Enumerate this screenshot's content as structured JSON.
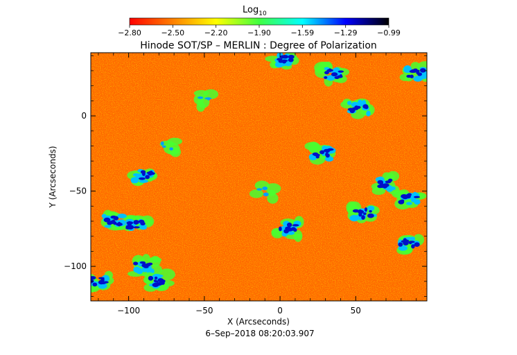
{
  "chart_data": {
    "type": "heatmap",
    "title": "Hinode SOT/SP – MERLIN : Degree of Polarization",
    "colorbar": {
      "label_main": "Log",
      "label_sub": "10",
      "ticks": [
        "−2.80",
        "−2.50",
        "−2.20",
        "−1.90",
        "−1.59",
        "−1.29",
        "−0.99"
      ],
      "range": [
        -2.8,
        -0.99
      ],
      "colormap": [
        "#ff0000",
        "#ff8000",
        "#ffff00",
        "#40ff40",
        "#00ffff",
        "#0000ff",
        "#000000"
      ]
    },
    "xlabel": "X (Arcseconds)",
    "ylabel": "Y (Arcseconds)",
    "xlim": [
      -125,
      97
    ],
    "ylim": [
      -123,
      42
    ],
    "xticks": [
      -100,
      -50,
      0,
      50
    ],
    "xtick_labels": [
      "−100",
      "−50",
      "0",
      "50"
    ],
    "yticks": [
      0,
      -50,
      -100
    ],
    "ytick_labels": [
      "0",
      "−50",
      "−100"
    ],
    "timestamp": "6–Sep–2018 08:20:03.907",
    "background_level": "orange/red (low polarization)",
    "features": [
      {
        "x": 2,
        "y": 37,
        "level": "high"
      },
      {
        "x": 35,
        "y": 28,
        "level": "high"
      },
      {
        "x": 52,
        "y": 5,
        "level": "high"
      },
      {
        "x": 28,
        "y": -25,
        "level": "high"
      },
      {
        "x": 70,
        "y": -45,
        "level": "high"
      },
      {
        "x": 85,
        "y": -55,
        "level": "high"
      },
      {
        "x": 55,
        "y": -65,
        "level": "high"
      },
      {
        "x": 85,
        "y": -85,
        "level": "high"
      },
      {
        "x": -90,
        "y": -40,
        "level": "high"
      },
      {
        "x": -95,
        "y": -72,
        "level": "high"
      },
      {
        "x": -110,
        "y": -70,
        "level": "high"
      },
      {
        "x": -90,
        "y": -100,
        "level": "high"
      },
      {
        "x": -80,
        "y": -110,
        "level": "high"
      },
      {
        "x": -120,
        "y": -110,
        "level": "high"
      },
      {
        "x": -10,
        "y": -50,
        "level": "mid"
      },
      {
        "x": -50,
        "y": 10,
        "level": "mid"
      },
      {
        "x": 5,
        "y": -75,
        "level": "high"
      },
      {
        "x": 90,
        "y": 28,
        "level": "high"
      },
      {
        "x": -75,
        "y": -20,
        "level": "mid"
      }
    ]
  }
}
